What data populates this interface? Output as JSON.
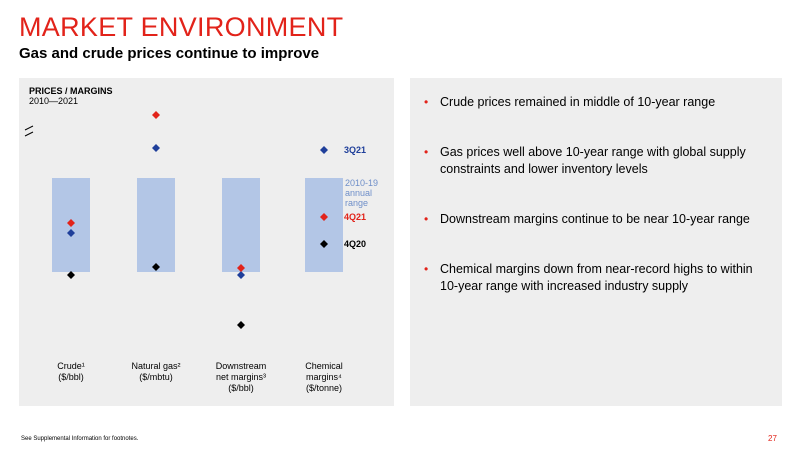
{
  "slide": {
    "title": "MARKET ENVIRONMENT",
    "subtitle": "Gas and crude prices continue to improve",
    "footnote": "See Supplemental Information for footnotes.",
    "page_number": "27"
  },
  "chart_data": {
    "type": "range-dot",
    "title": "PRICES / MARGINS",
    "subtitle": "2010—2021",
    "categories": [
      {
        "lines": [
          "Crude¹",
          "($/bbl)"
        ]
      },
      {
        "lines": [
          "Natural gas²",
          "($/mbtu)"
        ]
      },
      {
        "lines": [
          "Downstream",
          "net margins³",
          "($/bbl)"
        ]
      },
      {
        "lines": [
          "Chemical",
          "margins⁴",
          "($/tonne)"
        ]
      }
    ],
    "range_label": [
      "2010-19",
      "annual",
      "range"
    ],
    "axis_break": true,
    "series": [
      {
        "name": "3Q21",
        "color": "#1f3f9a"
      },
      {
        "name": "4Q21",
        "color": "#e2231a"
      },
      {
        "name": "4Q20",
        "color": "#000000"
      }
    ],
    "colors": {
      "range": "#b3c6e6",
      "range_label": "#6f8fc9"
    }
  },
  "bullets": [
    "Crude prices remained in middle of 10-year range",
    "Gas prices well above 10-year range with global supply constraints and lower inventory levels",
    "Downstream margins continue to be near 10-year range",
    "Chemical margins down from near-record highs to within 10-year range with increased industry supply"
  ]
}
